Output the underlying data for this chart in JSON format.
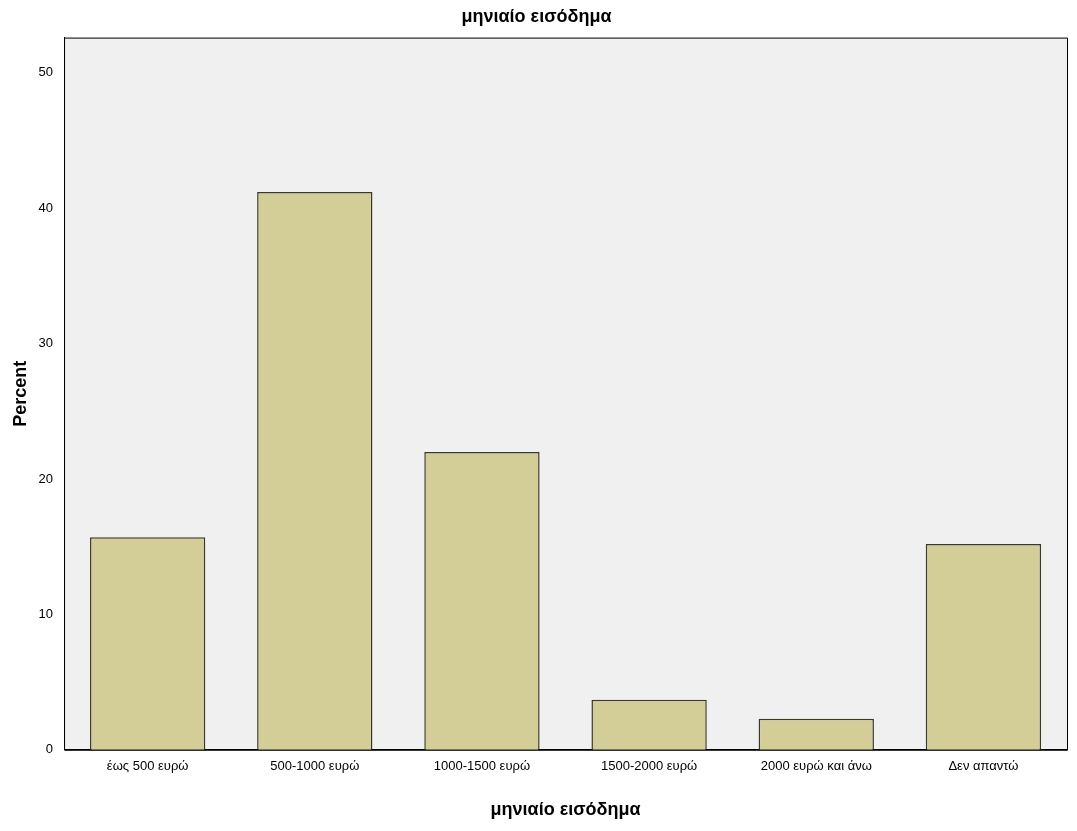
{
  "chart_data": {
    "type": "bar",
    "title": "μηνιαίο εισόδημα",
    "xlabel": "μηνιαίο εισόδημα",
    "ylabel": "Percent",
    "categories": [
      "έως 500 ευρώ",
      "500-1000 ευρώ",
      "1000-1500 ευρώ",
      "1500-2000 ευρώ",
      "2000 ευρώ και άνω",
      "Δεν απαντώ"
    ],
    "values": [
      15.7,
      41.2,
      22.0,
      3.7,
      2.3,
      15.2
    ],
    "color": "#d3ce97",
    "ylim": [
      0,
      52.6
    ],
    "yticks": [
      0,
      10,
      20,
      30,
      40,
      50
    ],
    "grid": false,
    "legend": false
  }
}
